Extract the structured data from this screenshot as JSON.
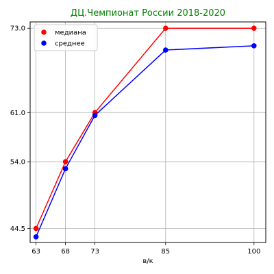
{
  "chart_data": {
    "type": "line",
    "title": "ДЦ.Чемпионат России 2018-2020",
    "title_color": "#008000",
    "xlabel": "в/к",
    "ylabel": "",
    "x": [
      63,
      68,
      73,
      85,
      100
    ],
    "x_tick_labels": [
      "63",
      "68",
      "73",
      "85",
      "100"
    ],
    "y_ticks": [
      44.5,
      54.0,
      61.0,
      73.0
    ],
    "y_tick_labels": [
      "44.5",
      "54.0",
      "61.0",
      "73.0"
    ],
    "xlim": [
      62.0,
      102.0
    ],
    "ylim": [
      42.5,
      73.9
    ],
    "grid": true,
    "legend_position": "top-left",
    "series": [
      {
        "name": "медиана",
        "color": "#ff0000",
        "values": [
          44.5,
          54.0,
          61.0,
          73.0,
          73.0
        ]
      },
      {
        "name": "среднее",
        "color": "#0000ff",
        "values": [
          43.3,
          53.0,
          60.6,
          69.9,
          70.5
        ]
      }
    ]
  }
}
